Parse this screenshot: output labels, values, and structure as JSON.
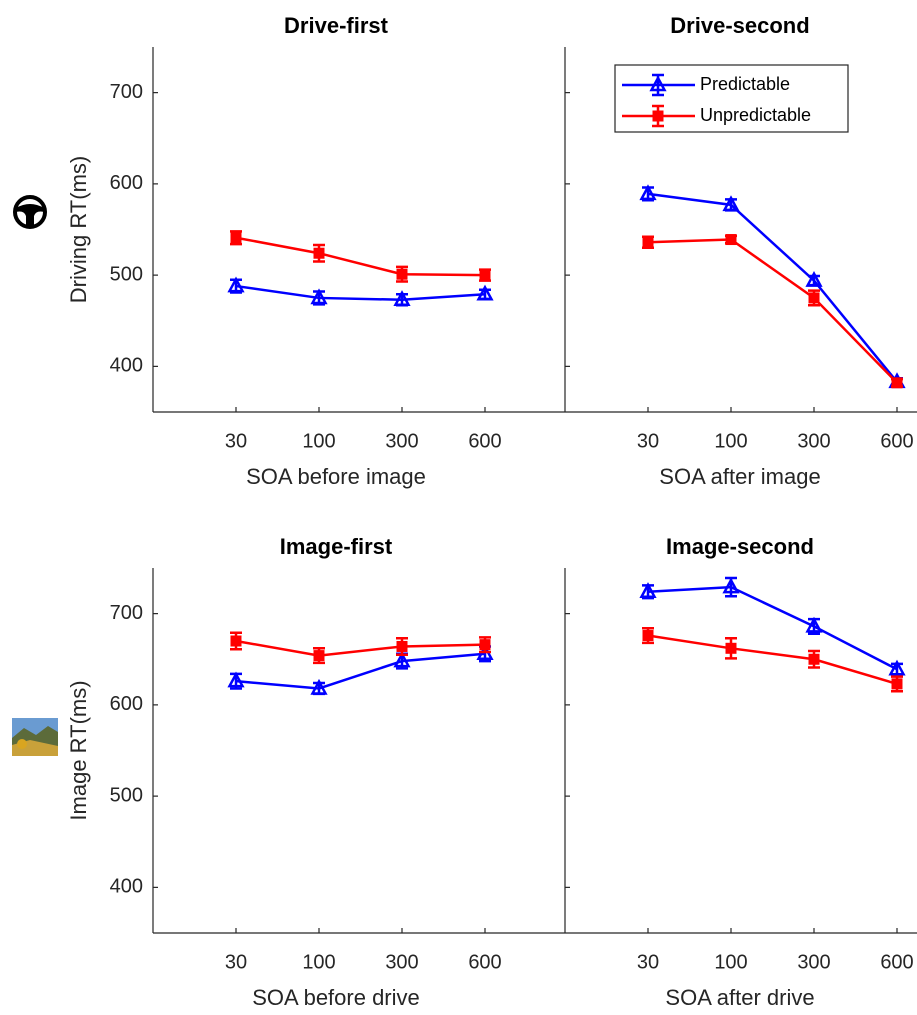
{
  "chart_data": [
    {
      "type": "line",
      "title": "Drive-first",
      "xlabel": "SOA before image",
      "ylabel": "Driving RT(ms)",
      "categories": [
        "30",
        "100",
        "300",
        "600"
      ],
      "ylim": [
        350,
        750
      ],
      "yticks": [
        400,
        500,
        600,
        700
      ],
      "show_ytick_labels": true,
      "series": [
        {
          "color": "#0000ff",
          "marker": "triangle",
          "values": [
            488,
            475,
            473,
            479
          ],
          "errors": [
            7,
            7,
            6,
            5
          ]
        },
        {
          "color": "#ff0000",
          "marker": "square",
          "values": [
            541,
            524,
            501,
            500
          ],
          "errors": [
            7,
            9,
            8,
            6
          ]
        }
      ]
    },
    {
      "type": "line",
      "title": "Drive-second",
      "xlabel": "SOA after image",
      "categories": [
        "30",
        "100",
        "300",
        "600"
      ],
      "ylim": [
        350,
        750
      ],
      "yticks": [
        400,
        500,
        600,
        700
      ],
      "show_ytick_labels": false,
      "legend": "upper right",
      "series": [
        {
          "name": "Predictable",
          "color": "#0000ff",
          "marker": "triangle",
          "values": [
            589,
            577,
            494,
            383
          ],
          "errors": [
            7,
            6,
            5,
            4
          ]
        },
        {
          "name": "Unpredictable",
          "color": "#ff0000",
          "marker": "square",
          "values": [
            536,
            539,
            475,
            382
          ],
          "errors": [
            6,
            4,
            8,
            4
          ]
        }
      ]
    },
    {
      "type": "line",
      "title": "Image-first",
      "xlabel": "SOA before drive",
      "ylabel": "Image RT(ms)",
      "categories": [
        "30",
        "100",
        "300",
        "600"
      ],
      "ylim": [
        350,
        750
      ],
      "yticks": [
        400,
        500,
        600,
        700
      ],
      "show_ytick_labels": true,
      "series": [
        {
          "color": "#0000ff",
          "marker": "triangle",
          "values": [
            626,
            618,
            648,
            656
          ],
          "errors": [
            8,
            6,
            8,
            8
          ]
        },
        {
          "color": "#ff0000",
          "marker": "square",
          "values": [
            670,
            654,
            664,
            666
          ],
          "errors": [
            9,
            8,
            9,
            8
          ]
        }
      ]
    },
    {
      "type": "line",
      "title": "Image-second",
      "xlabel": "SOA after drive",
      "categories": [
        "30",
        "100",
        "300",
        "600"
      ],
      "ylim": [
        350,
        750
      ],
      "yticks": [
        400,
        500,
        600,
        700
      ],
      "show_ytick_labels": false,
      "series": [
        {
          "color": "#0000ff",
          "marker": "triangle",
          "values": [
            724,
            729,
            686,
            639
          ],
          "errors": [
            7,
            10,
            8,
            6
          ]
        },
        {
          "color": "#ff0000",
          "marker": "square",
          "values": [
            676,
            662,
            650,
            623
          ],
          "errors": [
            8,
            11,
            9,
            8
          ]
        }
      ]
    }
  ]
}
